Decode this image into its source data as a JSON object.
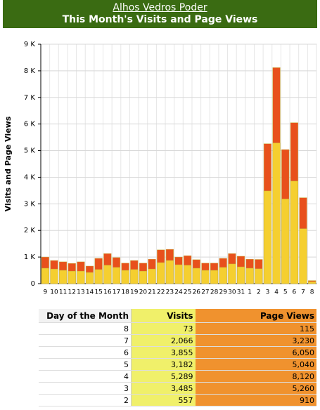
{
  "header": {
    "link": "Alhos Vedros Poder",
    "title": "This Month's Visits and Page Views"
  },
  "chart_data": {
    "type": "bar",
    "y_label": "Visits and Page Views",
    "categories": [
      "9",
      "10",
      "11",
      "12",
      "13",
      "14",
      "15",
      "16",
      "17",
      "18",
      "19",
      "20",
      "21",
      "22",
      "23",
      "24",
      "25",
      "26",
      "27",
      "28",
      "29",
      "30",
      "31",
      "1",
      "2",
      "3",
      "4",
      "5",
      "6",
      "7",
      "8"
    ],
    "series": [
      {
        "name": "Page Views",
        "color": "#e8501c",
        "values": [
          1000,
          870,
          820,
          760,
          820,
          660,
          950,
          1130,
          980,
          770,
          870,
          770,
          920,
          1270,
          1290,
          1000,
          1050,
          900,
          770,
          770,
          950,
          1130,
          1030,
          920,
          910,
          5260,
          8120,
          5040,
          6050,
          3230,
          115
        ]
      },
      {
        "name": "Visits",
        "color": "#f5cf30",
        "values": [
          580,
          550,
          500,
          470,
          470,
          420,
          530,
          690,
          610,
          500,
          530,
          470,
          550,
          790,
          870,
          710,
          690,
          580,
          500,
          500,
          610,
          740,
          630,
          580,
          557,
          3485,
          5289,
          3182,
          3855,
          2066,
          73
        ]
      }
    ],
    "ylim": [
      0,
      9000
    ],
    "yticks": [
      0,
      {
        "value": 1000,
        "label": "1 K"
      },
      {
        "value": 2000,
        "label": "2 K"
      },
      {
        "value": 3000,
        "label": "3 K"
      },
      {
        "value": 4000,
        "label": "4 K"
      },
      {
        "value": 5000,
        "label": "5 K"
      },
      {
        "value": 6000,
        "label": "6 K"
      },
      {
        "value": 7000,
        "label": "7 K"
      },
      {
        "value": 8000,
        "label": "8 K"
      },
      {
        "value": 9000,
        "label": "9 K"
      }
    ],
    "grid": true
  },
  "table": {
    "header": [
      "Day of the Month",
      "Visits",
      "Page Views"
    ],
    "rows": [
      [
        "8",
        "73",
        "115"
      ],
      [
        "7",
        "2,066",
        "3,230"
      ],
      [
        "6",
        "3,855",
        "6,050"
      ],
      [
        "5",
        "3,182",
        "5,040"
      ],
      [
        "4",
        "5,289",
        "8,120"
      ],
      [
        "3",
        "3,485",
        "5,260"
      ],
      [
        "2",
        "557",
        "910"
      ]
    ]
  }
}
